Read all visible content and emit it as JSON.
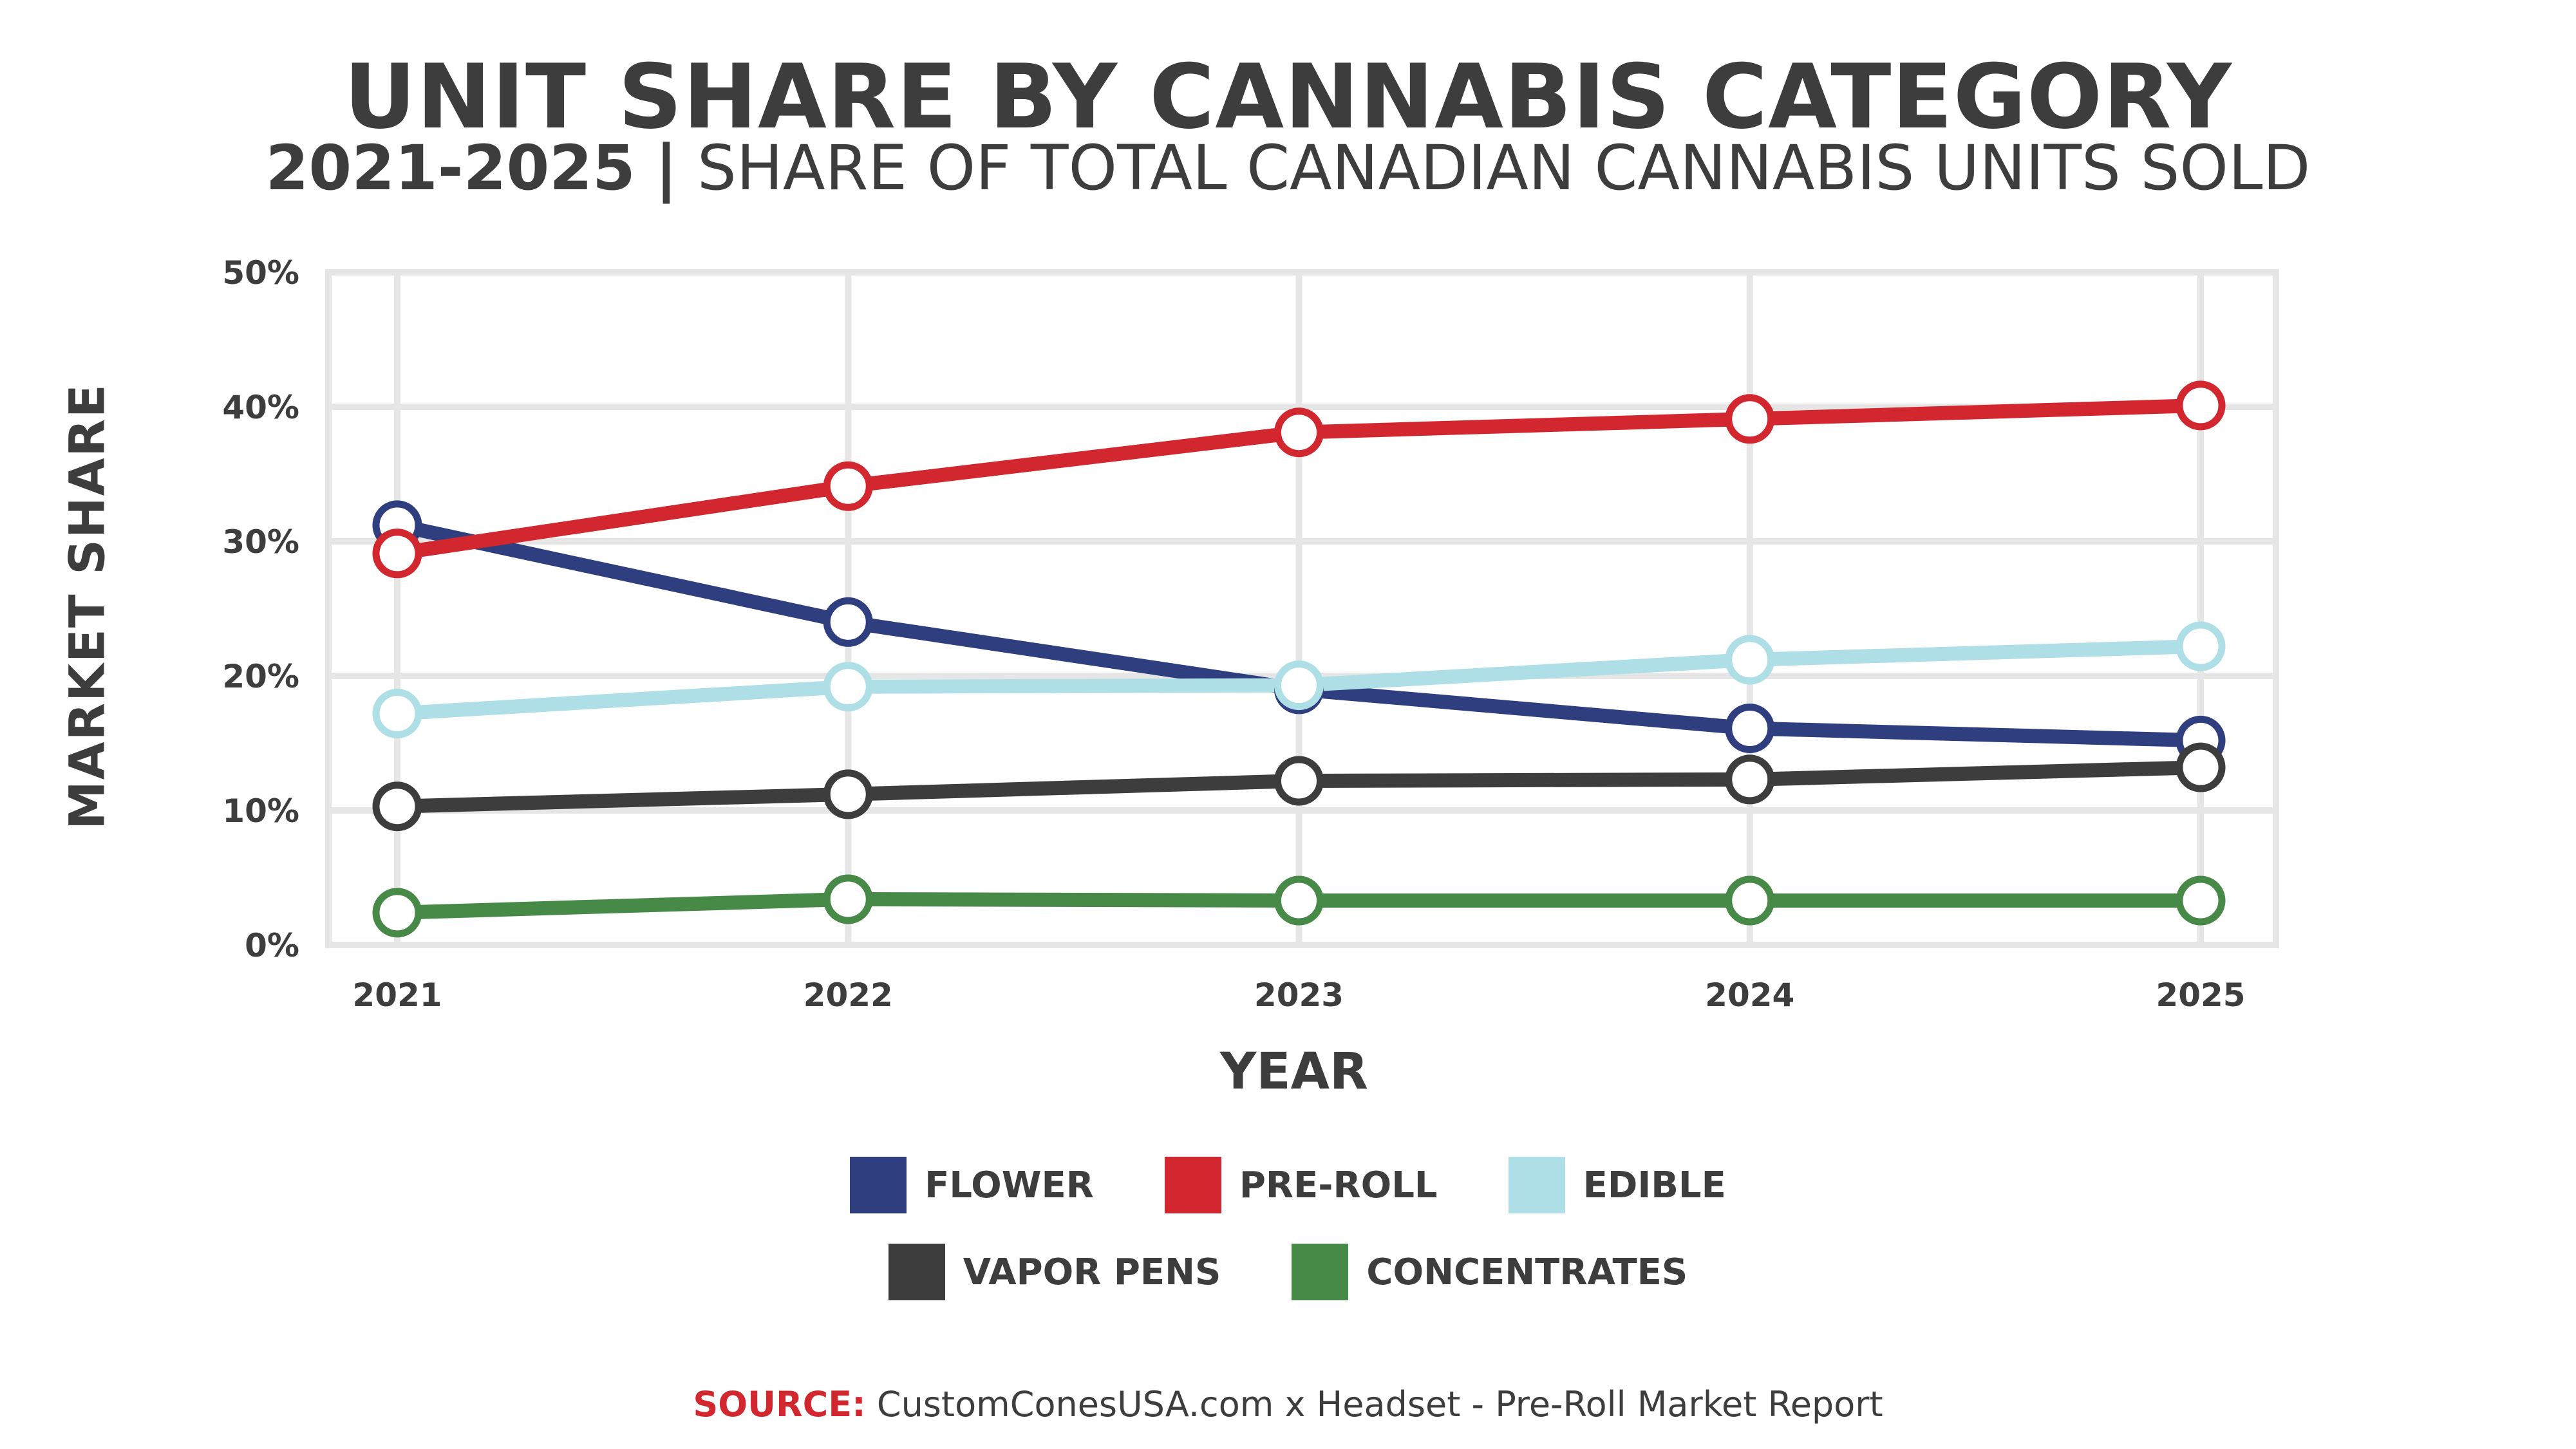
{
  "chart_data": {
    "type": "line",
    "title": "UNIT SHARE BY CANNABIS CATEGORY",
    "subtitle_years": "2021-2025",
    "subtitle_separator": "|",
    "subtitle_text": "SHARE OF TOTAL CANADIAN CANNABIS UNITS SOLD",
    "xlabel": "YEAR",
    "ylabel": "MARKET SHARE",
    "x": [
      "2021",
      "2022",
      "2023",
      "2024",
      "2025"
    ],
    "y_ticks": [
      "0%",
      "10%",
      "20%",
      "30%",
      "40%",
      "50%"
    ],
    "ylim": [
      0,
      50
    ],
    "grid": true,
    "legend_position": "bottom",
    "series": [
      {
        "name": "FLOWER",
        "color": "#2e3e7e",
        "values": [
          31.2,
          24.0,
          19.0,
          16.1,
          15.2
        ]
      },
      {
        "name": "PRE-ROLL",
        "color": "#d3272f",
        "values": [
          29.1,
          34.1,
          38.1,
          39.1,
          40.1
        ]
      },
      {
        "name": "EDIBLE",
        "color": "#afdfe6",
        "values": [
          17.2,
          19.2,
          19.3,
          21.2,
          22.2
        ]
      },
      {
        "name": "VAPOR PENS",
        "color": "#3d3d3d",
        "values": [
          10.3,
          11.2,
          12.2,
          12.3,
          13.2
        ]
      },
      {
        "name": "CONCENTRATES",
        "color": "#478a47",
        "values": [
          2.4,
          3.4,
          3.3,
          3.3,
          3.3
        ]
      }
    ]
  },
  "source": {
    "label": "SOURCE:",
    "text": " CustomConesUSA.com x Headset - Pre-Roll Market Report"
  }
}
